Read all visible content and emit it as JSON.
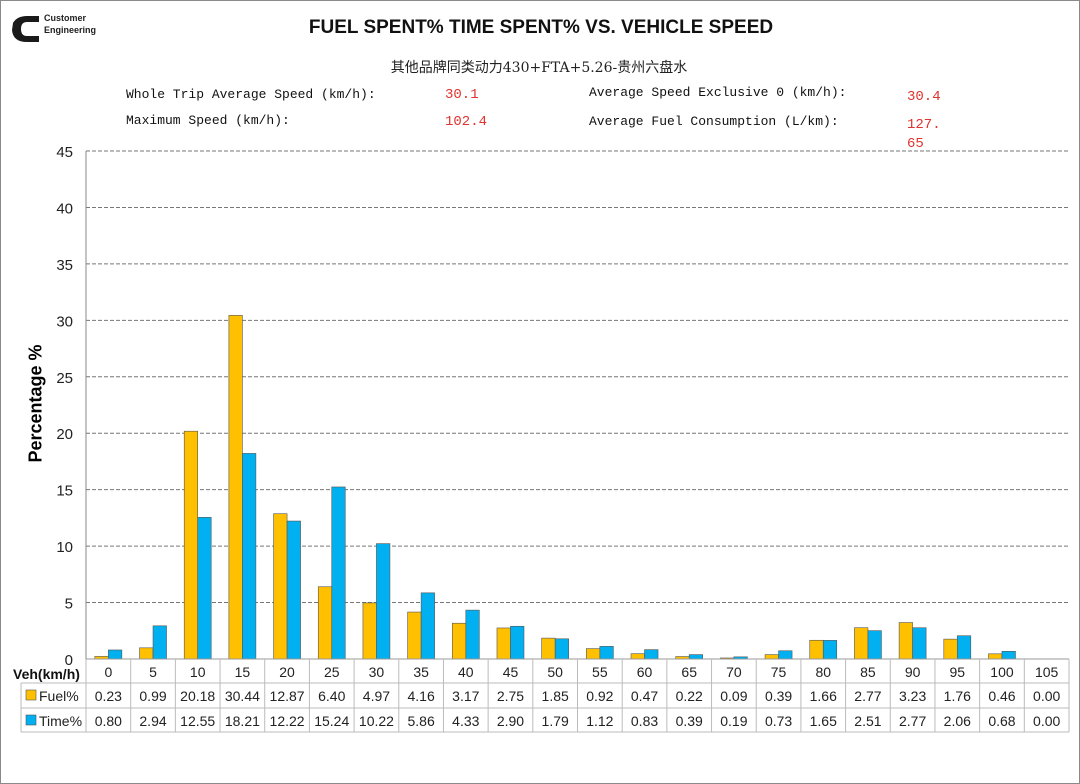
{
  "header": {
    "brand_line1": "Customer",
    "brand_line2": "Engineering",
    "title": "FUEL SPENT% TIME SPENT% VS. VEHICLE SPEED",
    "subtitle": "其他品牌同类动力430+FTA+5.26-贵州六盘水"
  },
  "stats": {
    "whole_trip_label": "Whole Trip Average Speed (km/h):",
    "whole_trip_value": "30.1",
    "max_speed_label": "Maximum Speed (km/h):",
    "max_speed_value": "102.4",
    "avg_excl0_label": "Average Speed Exclusive 0 (km/h):",
    "avg_excl0_value": "30.4",
    "avg_fuel_label": "Average Fuel Consumption (L/km):",
    "avg_fuel_value_line1": "127.",
    "avg_fuel_value_line2": "65"
  },
  "chart_data": {
    "type": "bar",
    "title": "FUEL SPENT% TIME SPENT% VS. VEHICLE SPEED",
    "xlabel": "Veh(km/h)",
    "ylabel": "Percentage %",
    "ylim": [
      0,
      45
    ],
    "yticks": [
      0,
      5,
      10,
      15,
      20,
      25,
      30,
      35,
      40,
      45
    ],
    "grid": true,
    "legend": "data-table",
    "categories": [
      "0",
      "5",
      "10",
      "15",
      "20",
      "25",
      "30",
      "35",
      "40",
      "45",
      "50",
      "55",
      "60",
      "65",
      "70",
      "75",
      "80",
      "85",
      "90",
      "95",
      "100",
      "105"
    ],
    "series": [
      {
        "name": "Fuel%",
        "color": "#FFC000",
        "values": [
          0.23,
          0.99,
          20.18,
          30.44,
          12.87,
          6.4,
          4.97,
          4.16,
          3.17,
          2.75,
          1.85,
          0.92,
          0.47,
          0.22,
          0.09,
          0.39,
          1.66,
          2.77,
          3.23,
          1.76,
          0.46,
          0.0
        ]
      },
      {
        "name": "Time%",
        "color": "#00B0F0",
        "values": [
          0.8,
          2.94,
          12.55,
          18.21,
          12.22,
          15.24,
          10.22,
          5.86,
          4.33,
          2.9,
          1.79,
          1.12,
          0.83,
          0.39,
          0.19,
          0.73,
          1.65,
          2.51,
          2.77,
          2.06,
          0.68,
          0.0
        ]
      }
    ]
  }
}
